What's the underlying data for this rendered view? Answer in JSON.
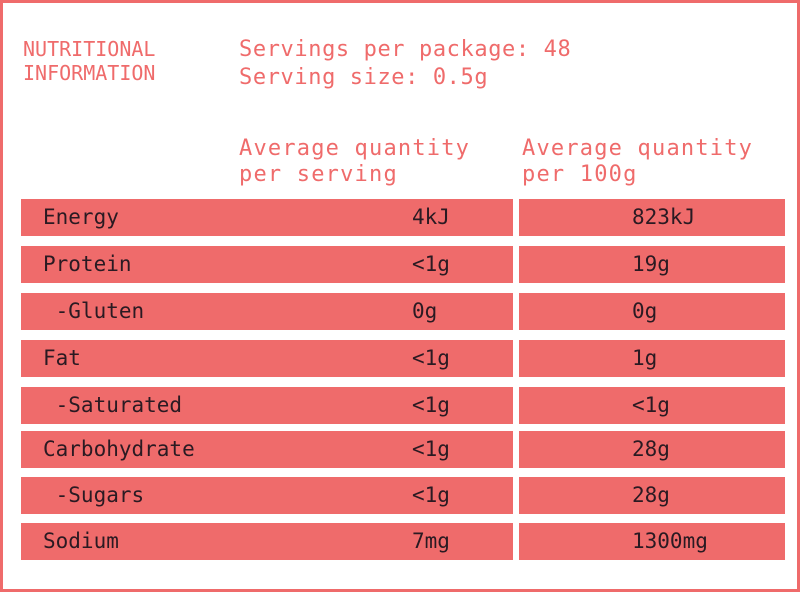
{
  "header": {
    "title": "NUTRITIONAL\nINFORMATION",
    "servings_per_package": "Servings per package: 48",
    "serving_size": "Serving size: 0.5g"
  },
  "columns": {
    "per_serving": "Average quantity\nper serving",
    "per_100g": "Average quantity\nper 100g"
  },
  "rows": [
    {
      "name": "Energy",
      "per_serving": "4kJ",
      "per_100g": "823kJ"
    },
    {
      "name": "Protein",
      "per_serving": "<1g",
      "per_100g": "19g"
    },
    {
      "name": " -Gluten",
      "per_serving": "0g",
      "per_100g": "0g"
    },
    {
      "name": "Fat",
      "per_serving": "<1g",
      "per_100g": "1g"
    },
    {
      "name": " -Saturated",
      "per_serving": "<1g",
      "per_100g": "<1g"
    },
    {
      "name": "Carbohydrate",
      "per_serving": "<1g",
      "per_100g": "28g"
    },
    {
      "name": " -Sugars",
      "per_serving": "<1g",
      "per_100g": "28g"
    },
    {
      "name": "Sodium",
      "per_serving": "7mg",
      "per_100g": "1300mg"
    }
  ],
  "colors": {
    "accent": "#ef6b6b",
    "text_dark": "#2a1a22"
  }
}
